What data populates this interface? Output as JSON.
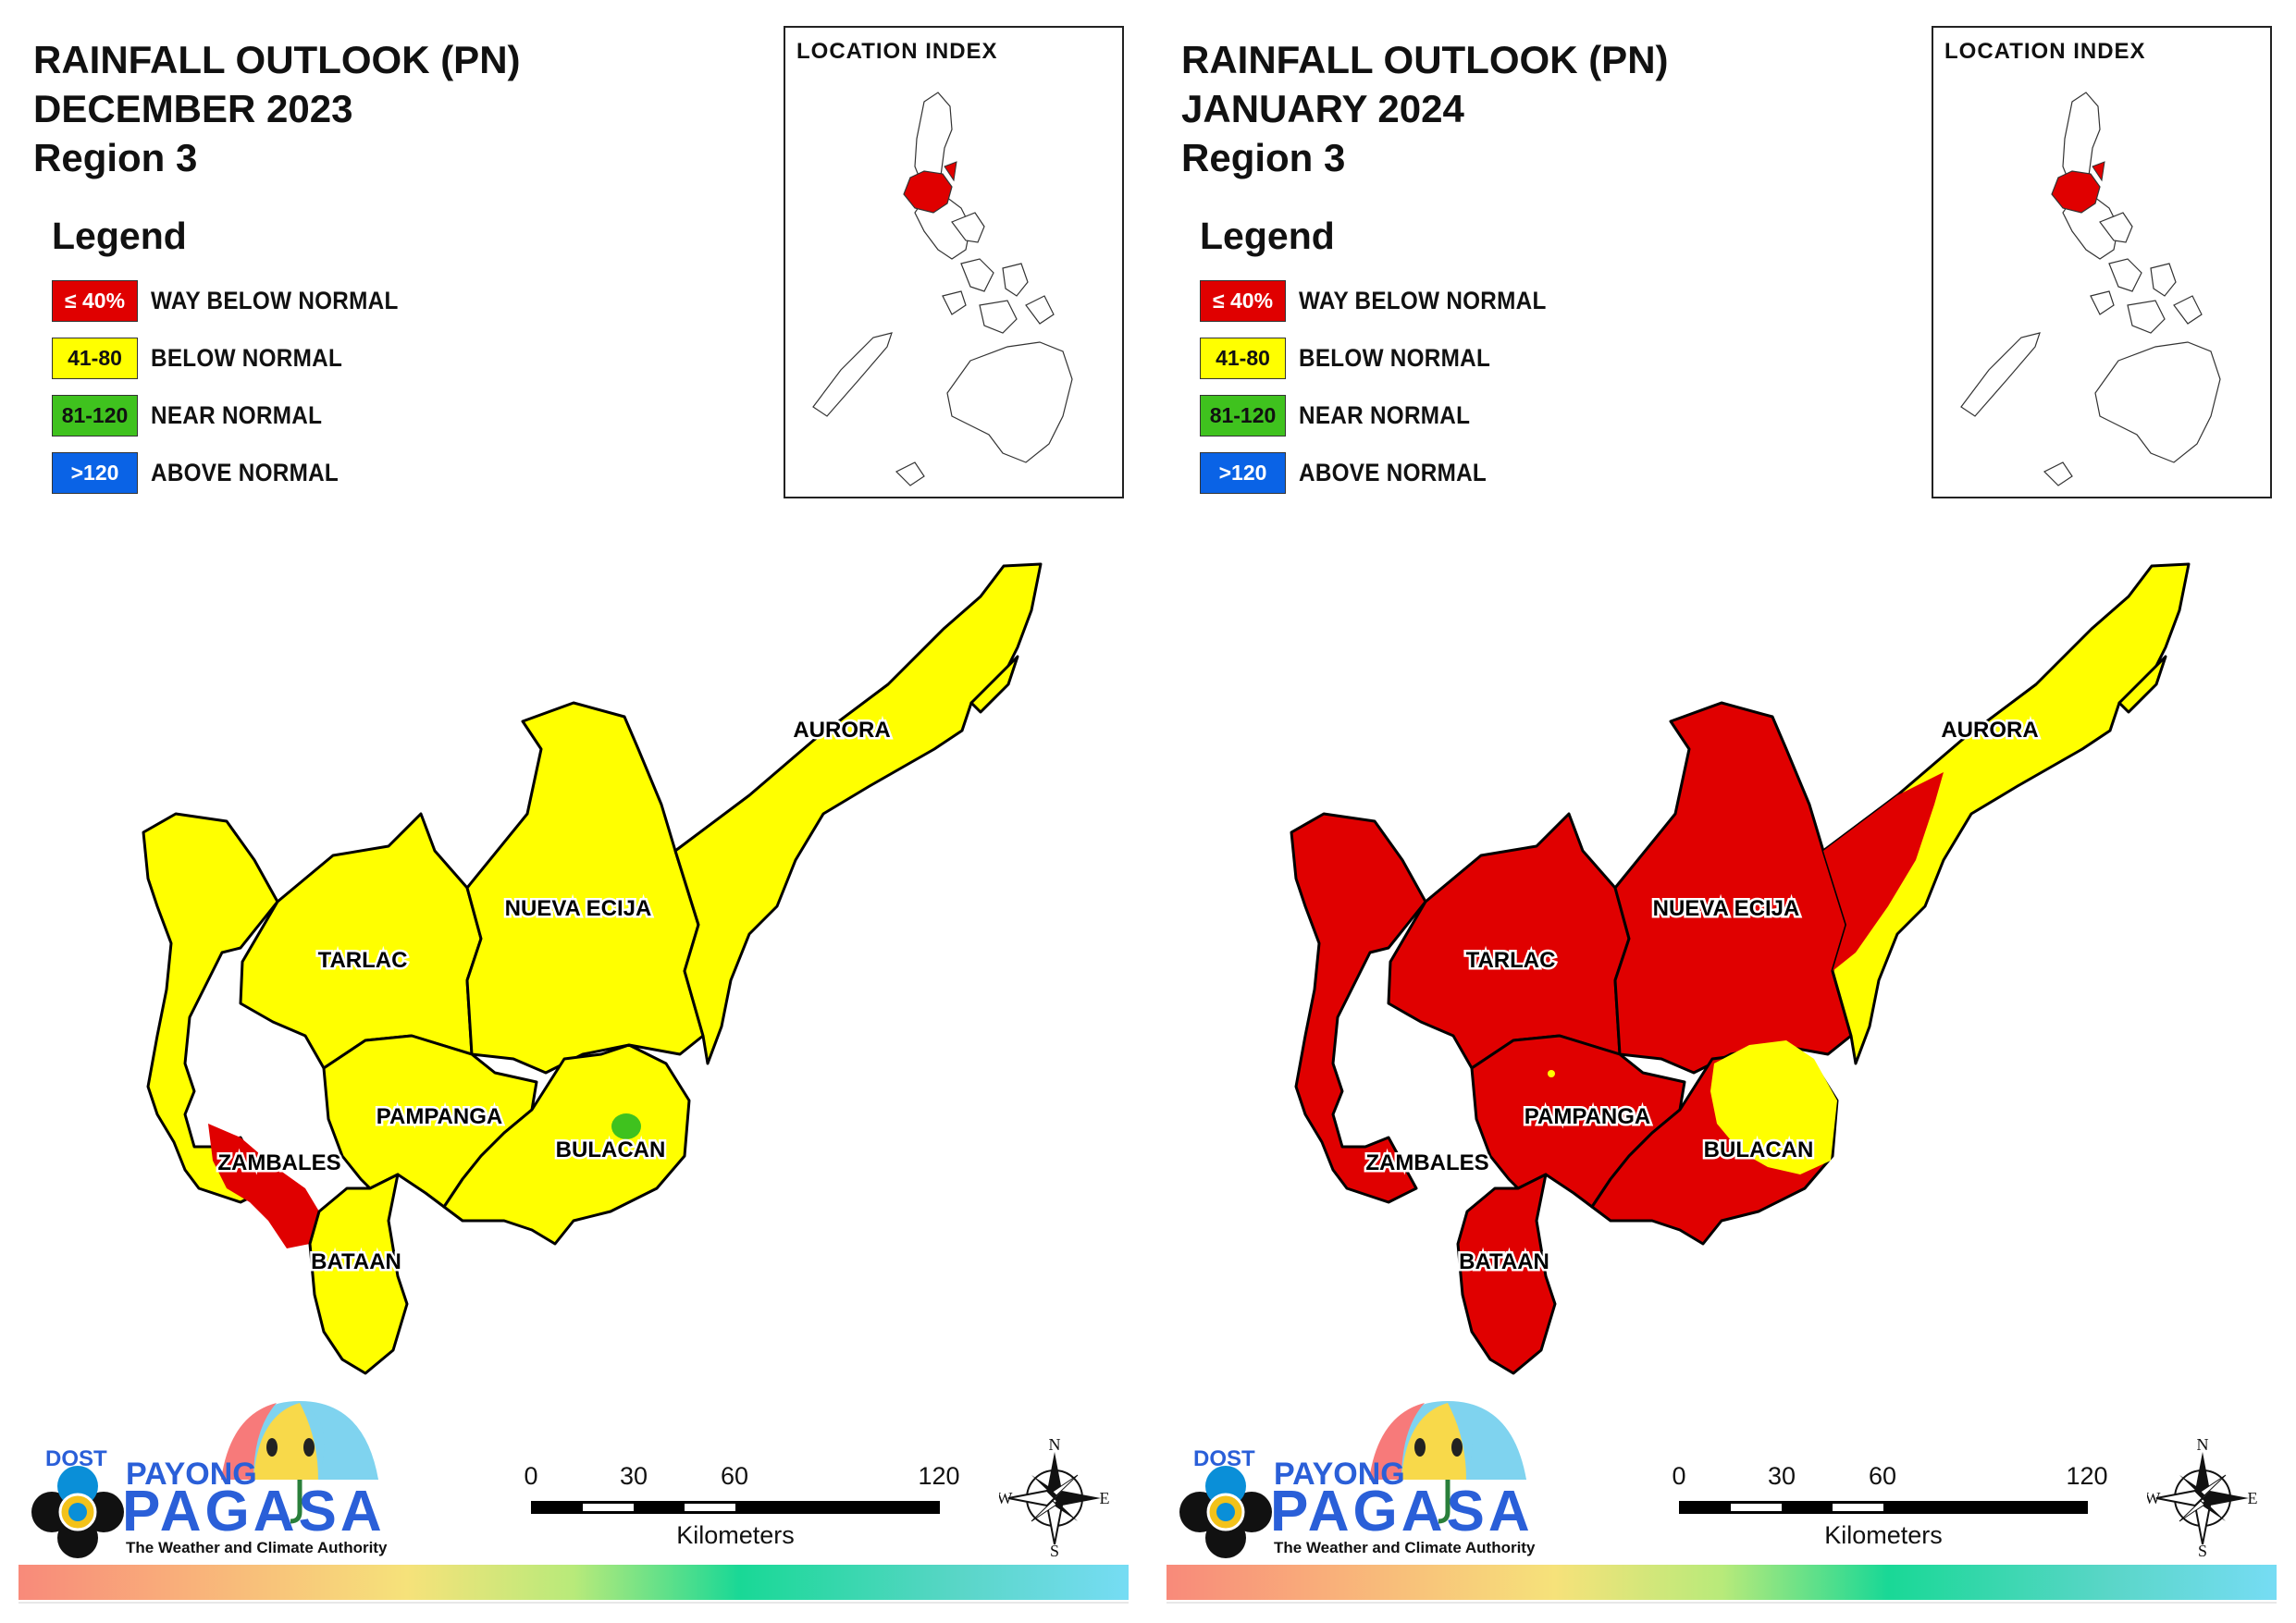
{
  "legend_heading": "Legend",
  "legend": [
    {
      "swatch_text": "≤ 40%",
      "label": "WAY BELOW NORMAL",
      "color": "#e00000",
      "text_color": "#ffffff"
    },
    {
      "swatch_text": "41-80",
      "label": "BELOW NORMAL",
      "color": "#ffff00",
      "text_color": "#111111"
    },
    {
      "swatch_text": "81-120",
      "label": "NEAR NORMAL",
      "color": "#3fc21e",
      "text_color": "#111111"
    },
    {
      "swatch_text": ">120",
      "label": "ABOVE NORMAL",
      "color": "#0a63e6",
      "text_color": "#ffffff"
    }
  ],
  "location_index_title": "LOCATION INDEX",
  "provinces": [
    "AURORA",
    "NUEVA ECIJA",
    "TARLAC",
    "PAMPANGA",
    "BULACAN",
    "ZAMBALES",
    "BATAAN"
  ],
  "scale_bar": {
    "ticks": [
      "0",
      "30",
      "60",
      "120"
    ],
    "unit": "Kilometers"
  },
  "compass": {
    "n": "N",
    "s": "S",
    "e": "E",
    "w": "W"
  },
  "logo": {
    "dost": "DOST",
    "payong": "PAYONG",
    "pagasa": "PAGASA",
    "tagline": "The Weather and Climate Authority"
  },
  "colors": {
    "way_below": "#e00000",
    "below": "#ffff00",
    "near": "#3fc21e",
    "above": "#0a63e6"
  },
  "panels": [
    {
      "title_line1": "RAINFALL OUTLOOK (PN)",
      "title_line2": "DECEMBER 2023",
      "title_line3": "Region 3",
      "dominant_category": "BELOW NORMAL",
      "patch_categories": [
        "WAY BELOW NORMAL",
        "NEAR NORMAL"
      ]
    },
    {
      "title_line1": "RAINFALL OUTLOOK (PN)",
      "title_line2": "JANUARY 2024",
      "title_line3": "Region 3",
      "dominant_category": "WAY BELOW NORMAL",
      "patch_categories": [
        "BELOW NORMAL"
      ]
    }
  ]
}
